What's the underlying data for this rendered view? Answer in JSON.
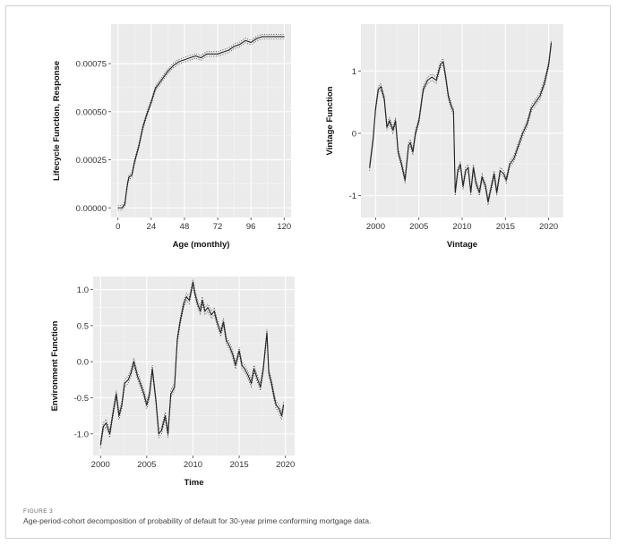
{
  "figure": {
    "label": "FIGURE 3",
    "caption": "Age-period-cohort decomposition of probability of default for 30-year prime conforming mortgage data."
  },
  "colors": {
    "panel_bg": "#ebebeb",
    "grid_major": "#ffffff",
    "grid_minor": "#f5f5f5",
    "line": "#222222"
  },
  "chart_data": [
    {
      "type": "line",
      "xlabel": "Age (monthly)",
      "ylabel": "Lifecycle Function, Response",
      "xlim": [
        -5,
        125
      ],
      "ylim": [
        -5e-05,
        0.000955
      ],
      "xticks": [
        0,
        24,
        48,
        72,
        96,
        120
      ],
      "xtick_labels": [
        "0",
        "24",
        "48",
        "72",
        "96",
        "120"
      ],
      "yticks": [
        0,
        0.00025,
        0.0005,
        0.00075
      ],
      "ytick_labels": [
        "0.00000",
        "0.00025",
        "0.00050",
        "0.00075"
      ],
      "band": 1.2e-05,
      "grid": true,
      "x": [
        0,
        3,
        5,
        6,
        7,
        8,
        10,
        12,
        15,
        18,
        21,
        24,
        27,
        30,
        33,
        36,
        40,
        44,
        48,
        52,
        56,
        60,
        64,
        68,
        72,
        76,
        80,
        84,
        88,
        92,
        96,
        100,
        104,
        108,
        112,
        116,
        120
      ],
      "y": [
        0.0,
        0.0,
        2e-05,
        8e-05,
        0.00013,
        0.00016,
        0.00017,
        0.00024,
        0.00032,
        0.00042,
        0.00049,
        0.00055,
        0.00062,
        0.00065,
        0.00068,
        0.00071,
        0.00074,
        0.00076,
        0.00077,
        0.00078,
        0.00079,
        0.00078,
        0.0008,
        0.0008,
        0.0008,
        0.00081,
        0.00082,
        0.00084,
        0.00085,
        0.00087,
        0.00086,
        0.00088,
        0.00089,
        0.00089,
        0.00089,
        0.00089,
        0.00089
      ]
    },
    {
      "type": "line",
      "xlabel": "Vintage",
      "ylabel": "Vintage Function",
      "xlim": [
        1998.3,
        2021.7
      ],
      "ylim": [
        -1.35,
        1.75
      ],
      "xticks": [
        2000,
        2005,
        2010,
        2015,
        2020
      ],
      "xtick_labels": [
        "2000",
        "2005",
        "2010",
        "2015",
        "2020"
      ],
      "yticks": [
        -1,
        0,
        1
      ],
      "ytick_labels": [
        "-1",
        "0",
        "1"
      ],
      "band": 0.05,
      "grid": true,
      "x": [
        1999.3,
        1999.7,
        2000.0,
        2000.3,
        2000.6,
        2001.0,
        2001.3,
        2001.6,
        2002.0,
        2002.3,
        2002.6,
        2003.0,
        2003.4,
        2003.8,
        2004.0,
        2004.3,
        2004.6,
        2005.0,
        2005.5,
        2006.0,
        2006.5,
        2007.0,
        2007.5,
        2007.8,
        2008.1,
        2008.4,
        2008.7,
        2009.0,
        2009.2,
        2009.5,
        2009.8,
        2010.1,
        2010.4,
        2010.7,
        2011.0,
        2011.3,
        2011.6,
        2012.0,
        2012.3,
        2012.7,
        2013.0,
        2013.3,
        2013.7,
        2014.0,
        2014.4,
        2014.8,
        2015.1,
        2015.5,
        2016.0,
        2016.5,
        2017.0,
        2017.5,
        2018.0,
        2018.5,
        2019.0,
        2019.5,
        2020.0,
        2020.3
      ],
      "y": [
        -0.55,
        -0.1,
        0.4,
        0.7,
        0.75,
        0.55,
        0.1,
        0.2,
        0.05,
        0.2,
        -0.3,
        -0.5,
        -0.75,
        -0.2,
        -0.15,
        -0.3,
        0.0,
        0.2,
        0.7,
        0.85,
        0.9,
        0.85,
        1.1,
        1.15,
        0.9,
        0.6,
        0.45,
        0.35,
        -0.95,
        -0.6,
        -0.5,
        -0.85,
        -0.6,
        -0.55,
        -0.95,
        -0.55,
        -0.8,
        -0.95,
        -0.7,
        -0.85,
        -1.1,
        -0.9,
        -0.65,
        -0.95,
        -0.6,
        -0.65,
        -0.75,
        -0.5,
        -0.4,
        -0.2,
        0.0,
        0.15,
        0.4,
        0.5,
        0.6,
        0.8,
        1.1,
        1.45
      ]
    },
    {
      "type": "line",
      "xlabel": "Time",
      "ylabel": "Environment Function",
      "xlim": [
        1999.2,
        2021.0
      ],
      "ylim": [
        -1.3,
        1.18
      ],
      "xticks": [
        2000,
        2005,
        2010,
        2015,
        2020
      ],
      "xtick_labels": [
        "2000",
        "2005",
        "2010",
        "2015",
        "2020"
      ],
      "yticks": [
        -1.0,
        -0.5,
        0.0,
        0.5,
        1.0
      ],
      "ytick_labels": [
        "-1.0",
        "-0.5",
        "0.0",
        "0.5",
        "1.0"
      ],
      "band": 0.05,
      "grid": true,
      "x": [
        2000.0,
        2000.3,
        2000.6,
        2001.0,
        2001.3,
        2001.7,
        2002.0,
        2002.3,
        2002.6,
        2003.0,
        2003.3,
        2003.6,
        2004.0,
        2004.3,
        2004.7,
        2005.0,
        2005.3,
        2005.6,
        2006.0,
        2006.3,
        2006.6,
        2007.0,
        2007.3,
        2007.6,
        2008.0,
        2008.3,
        2008.6,
        2009.0,
        2009.3,
        2009.6,
        2010.0,
        2010.2,
        2010.5,
        2010.8,
        2011.0,
        2011.3,
        2011.6,
        2012.0,
        2012.3,
        2012.6,
        2013.0,
        2013.3,
        2013.6,
        2014.0,
        2014.3,
        2014.6,
        2015.0,
        2015.3,
        2015.6,
        2016.0,
        2016.3,
        2016.6,
        2017.0,
        2017.3,
        2017.6,
        2018.0,
        2018.2,
        2018.5,
        2018.8,
        2019.0,
        2019.3,
        2019.6,
        2019.8
      ],
      "y": [
        -1.15,
        -0.9,
        -0.85,
        -1.0,
        -0.75,
        -0.45,
        -0.75,
        -0.6,
        -0.3,
        -0.25,
        -0.15,
        0.0,
        -0.2,
        -0.3,
        -0.45,
        -0.6,
        -0.45,
        -0.1,
        -0.55,
        -1.0,
        -0.95,
        -0.75,
        -1.0,
        -0.45,
        -0.35,
        0.3,
        0.55,
        0.8,
        0.9,
        0.85,
        1.1,
        0.95,
        0.8,
        0.7,
        0.85,
        0.7,
        0.75,
        0.65,
        0.7,
        0.55,
        0.4,
        0.55,
        0.3,
        0.2,
        0.1,
        -0.05,
        0.15,
        -0.05,
        -0.1,
        -0.2,
        -0.3,
        -0.1,
        -0.25,
        -0.35,
        -0.1,
        0.4,
        -0.15,
        -0.3,
        -0.5,
        -0.6,
        -0.65,
        -0.75,
        -0.6
      ]
    }
  ]
}
